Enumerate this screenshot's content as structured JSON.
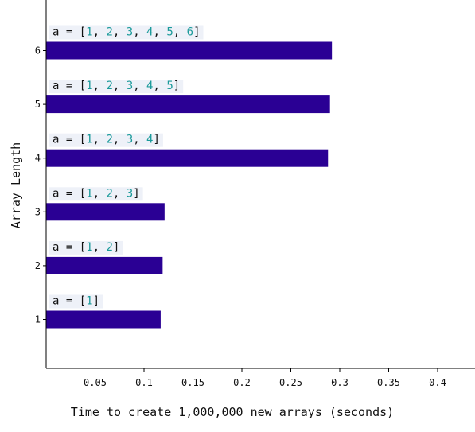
{
  "chart_data": {
    "type": "bar",
    "orientation": "horizontal",
    "xlabel": "Time to create 1,000,000 new arrays (seconds)",
    "ylabel": "Array Length",
    "categories": [
      "1",
      "2",
      "3",
      "4",
      "5",
      "6"
    ],
    "values": [
      0.117,
      0.119,
      0.121,
      0.288,
      0.29,
      0.292
    ],
    "annotations": [
      "a = [1]",
      "a = [1, 2]",
      "a = [1, 2, 3]",
      "a = [1, 2, 3, 4]",
      "a = [1, 2, 3, 4, 5]",
      "a = [1, 2, 3, 4, 5, 6]"
    ],
    "xlim": [
      0,
      0.44
    ],
    "xticks": [
      "0.05",
      "0.1",
      "0.15",
      "0.2",
      "0.25",
      "0.3",
      "0.35",
      "0.4"
    ],
    "grid": false,
    "bar_color": "#2a0094",
    "number_color": "#1a9a9a",
    "code_text_color": "#111111",
    "annotation_bg": "#eef1f8"
  }
}
